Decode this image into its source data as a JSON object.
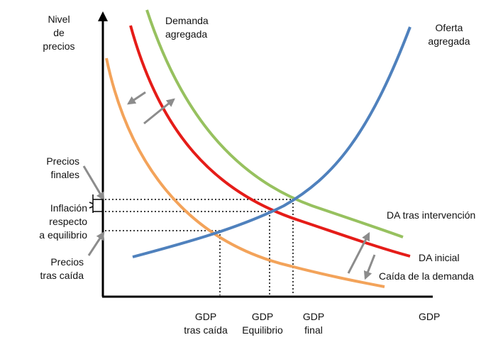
{
  "labels": {
    "y_axis": [
      "Nivel",
      "de",
      "precios"
    ],
    "x_axis": "GDP",
    "demanda_agregada": [
      "Demanda",
      "agregada"
    ],
    "oferta_agregada": [
      "Oferta",
      "agregada"
    ],
    "da_tras_intervencion": "DA tras intervención",
    "da_inicial": "DA inicial",
    "caida_demanda": "Caída de la demanda",
    "precios_finales": [
      "Precios",
      "finales"
    ],
    "inflacion": [
      "Inflación",
      "respecto",
      "a equilibrio"
    ],
    "precios_caida": [
      "Precios",
      "tras caída"
    ],
    "gdp_caida": [
      "GDP",
      "tras caída"
    ],
    "gdp_equilibrio": [
      "GDP",
      "Equilibrio"
    ],
    "gdp_final": [
      "GDP",
      "final"
    ]
  },
  "colors": {
    "green": "#97c15f",
    "red": "#e51c18",
    "orange": "#f3a35a",
    "blue": "#4f81bd",
    "arrow": "#8c8c8c",
    "axis": "#000000",
    "text": "#111111"
  }
}
